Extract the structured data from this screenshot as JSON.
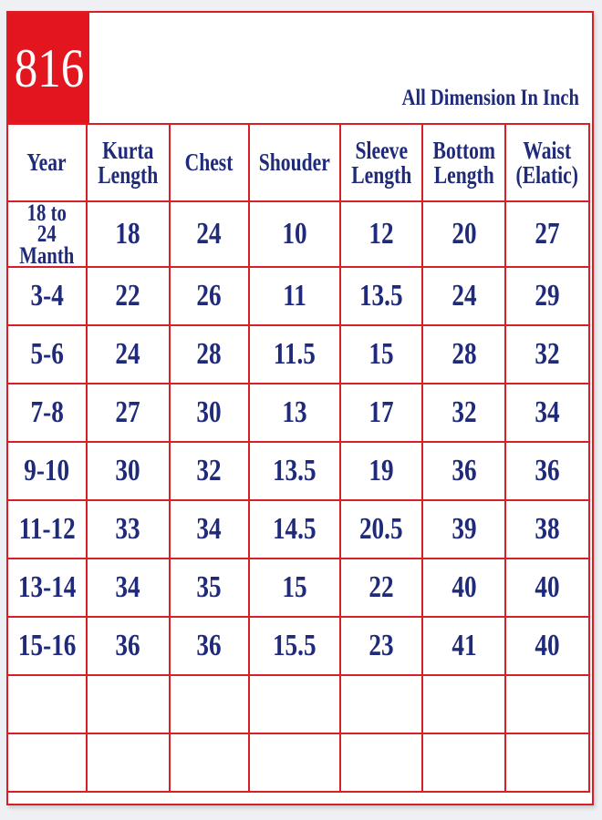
{
  "badge": "816",
  "unit_note": "All Dimension In Inch",
  "colors": {
    "accent_red": "#e3161f",
    "text_navy": "#1f2a7a"
  },
  "table": {
    "headers": [
      "Year",
      "Kurta\nLength",
      "Chest",
      "Shouder",
      "Sleeve\nLength",
      "Bottom\nLength",
      "Waist\n(Elatic)"
    ],
    "rows": [
      [
        "18 to 24\nManth",
        "18",
        "24",
        "10",
        "12",
        "20",
        "27"
      ],
      [
        "3-4",
        "22",
        "26",
        "11",
        "13.5",
        "24",
        "29"
      ],
      [
        "5-6",
        "24",
        "28",
        "11.5",
        "15",
        "28",
        "32"
      ],
      [
        "7-8",
        "27",
        "30",
        "13",
        "17",
        "32",
        "34"
      ],
      [
        "9-10",
        "30",
        "32",
        "13.5",
        "19",
        "36",
        "36"
      ],
      [
        "11-12",
        "33",
        "34",
        "14.5",
        "20.5",
        "39",
        "38"
      ],
      [
        "13-14",
        "34",
        "35",
        "15",
        "22",
        "40",
        "40"
      ],
      [
        "15-16",
        "36",
        "36",
        "15.5",
        "23",
        "41",
        "40"
      ],
      [
        "",
        "",
        "",
        "",
        "",
        "",
        ""
      ],
      [
        "",
        "",
        "",
        "",
        "",
        "",
        ""
      ]
    ]
  }
}
